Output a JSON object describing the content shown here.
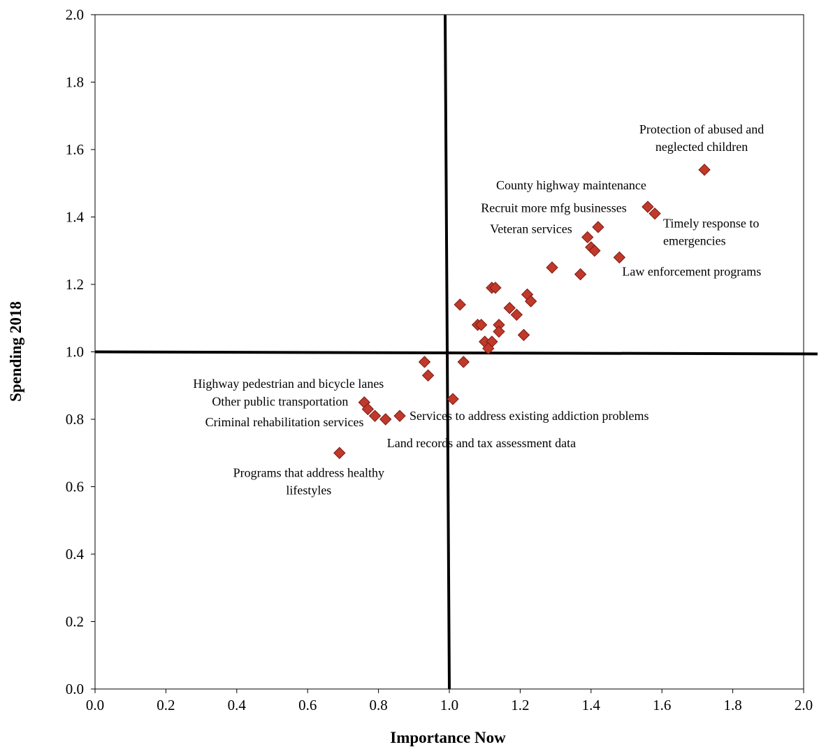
{
  "chart_data": {
    "type": "scatter",
    "xlabel": "Importance Now",
    "ylabel": "Spending 2018",
    "xlim": [
      0.0,
      2.0
    ],
    "ylim": [
      0.0,
      2.0
    ],
    "x_ticks": [
      "0.0",
      "0.2",
      "0.4",
      "0.6",
      "0.8",
      "1.0",
      "1.2",
      "1.4",
      "1.6",
      "1.8",
      "2.0"
    ],
    "y_ticks": [
      "0.0",
      "0.2",
      "0.4",
      "0.6",
      "0.8",
      "1.0",
      "1.2",
      "1.4",
      "1.6",
      "1.8",
      "2.0"
    ],
    "grid": false,
    "quadrant_lines": {
      "x": 1.0,
      "y": 1.0
    },
    "marker": {
      "shape": "diamond",
      "fill": "#c0392b",
      "stroke": "#7a1a12"
    },
    "points": [
      {
        "x": 1.72,
        "y": 1.54
      },
      {
        "x": 1.56,
        "y": 1.43
      },
      {
        "x": 1.58,
        "y": 1.41
      },
      {
        "x": 1.42,
        "y": 1.37
      },
      {
        "x": 1.39,
        "y": 1.34
      },
      {
        "x": 1.4,
        "y": 1.31
      },
      {
        "x": 1.41,
        "y": 1.3
      },
      {
        "x": 1.48,
        "y": 1.28
      },
      {
        "x": 1.29,
        "y": 1.25
      },
      {
        "x": 1.37,
        "y": 1.23
      },
      {
        "x": 1.12,
        "y": 1.19
      },
      {
        "x": 1.13,
        "y": 1.19
      },
      {
        "x": 1.22,
        "y": 1.17
      },
      {
        "x": 1.23,
        "y": 1.15
      },
      {
        "x": 1.03,
        "y": 1.14
      },
      {
        "x": 1.17,
        "y": 1.13
      },
      {
        "x": 1.19,
        "y": 1.11
      },
      {
        "x": 1.08,
        "y": 1.08
      },
      {
        "x": 1.09,
        "y": 1.08
      },
      {
        "x": 1.14,
        "y": 1.08
      },
      {
        "x": 1.14,
        "y": 1.06
      },
      {
        "x": 1.21,
        "y": 1.05
      },
      {
        "x": 1.1,
        "y": 1.03
      },
      {
        "x": 1.12,
        "y": 1.03
      },
      {
        "x": 1.11,
        "y": 1.01
      },
      {
        "x": 0.93,
        "y": 0.97
      },
      {
        "x": 1.04,
        "y": 0.97
      },
      {
        "x": 0.94,
        "y": 0.93
      },
      {
        "x": 1.01,
        "y": 0.86
      },
      {
        "x": 0.76,
        "y": 0.85
      },
      {
        "x": 0.77,
        "y": 0.83
      },
      {
        "x": 0.79,
        "y": 0.81
      },
      {
        "x": 0.86,
        "y": 0.81
      },
      {
        "x": 0.82,
        "y": 0.8
      },
      {
        "x": 0.69,
        "y": 0.7
      }
    ],
    "annotations": [
      {
        "lines": [
          "Protection of abused and",
          "neglected children"
        ],
        "x": 1.72,
        "y": 1.54
      },
      {
        "lines": [
          "County highway maintenance"
        ],
        "x": 1.56,
        "y": 1.43
      },
      {
        "lines": [
          "Recruit more mfg businesses"
        ],
        "x": 1.39,
        "y": 1.34
      },
      {
        "lines": [
          "Veteran services"
        ],
        "x": 1.39,
        "y": 1.34
      },
      {
        "lines": [
          "Timely response to",
          "emergencies"
        ],
        "x": 1.58,
        "y": 1.41
      },
      {
        "lines": [
          "Law enforcement programs"
        ],
        "x": 1.48,
        "y": 1.28
      },
      {
        "lines": [
          "Highway pedestrian and bicycle lanes"
        ],
        "x": 0.76,
        "y": 0.85
      },
      {
        "lines": [
          "Other public transportation"
        ],
        "x": 0.77,
        "y": 0.83
      },
      {
        "lines": [
          "Criminal rehabilitation services"
        ],
        "x": 0.79,
        "y": 0.81
      },
      {
        "lines": [
          "Services to address existing addiction problems"
        ],
        "x": 0.86,
        "y": 0.81
      },
      {
        "lines": [
          "Land records and tax assessment data"
        ],
        "x": 0.82,
        "y": 0.8
      },
      {
        "lines": [
          "Programs that address healthy",
          "lifestyles"
        ],
        "x": 0.69,
        "y": 0.7
      }
    ]
  }
}
